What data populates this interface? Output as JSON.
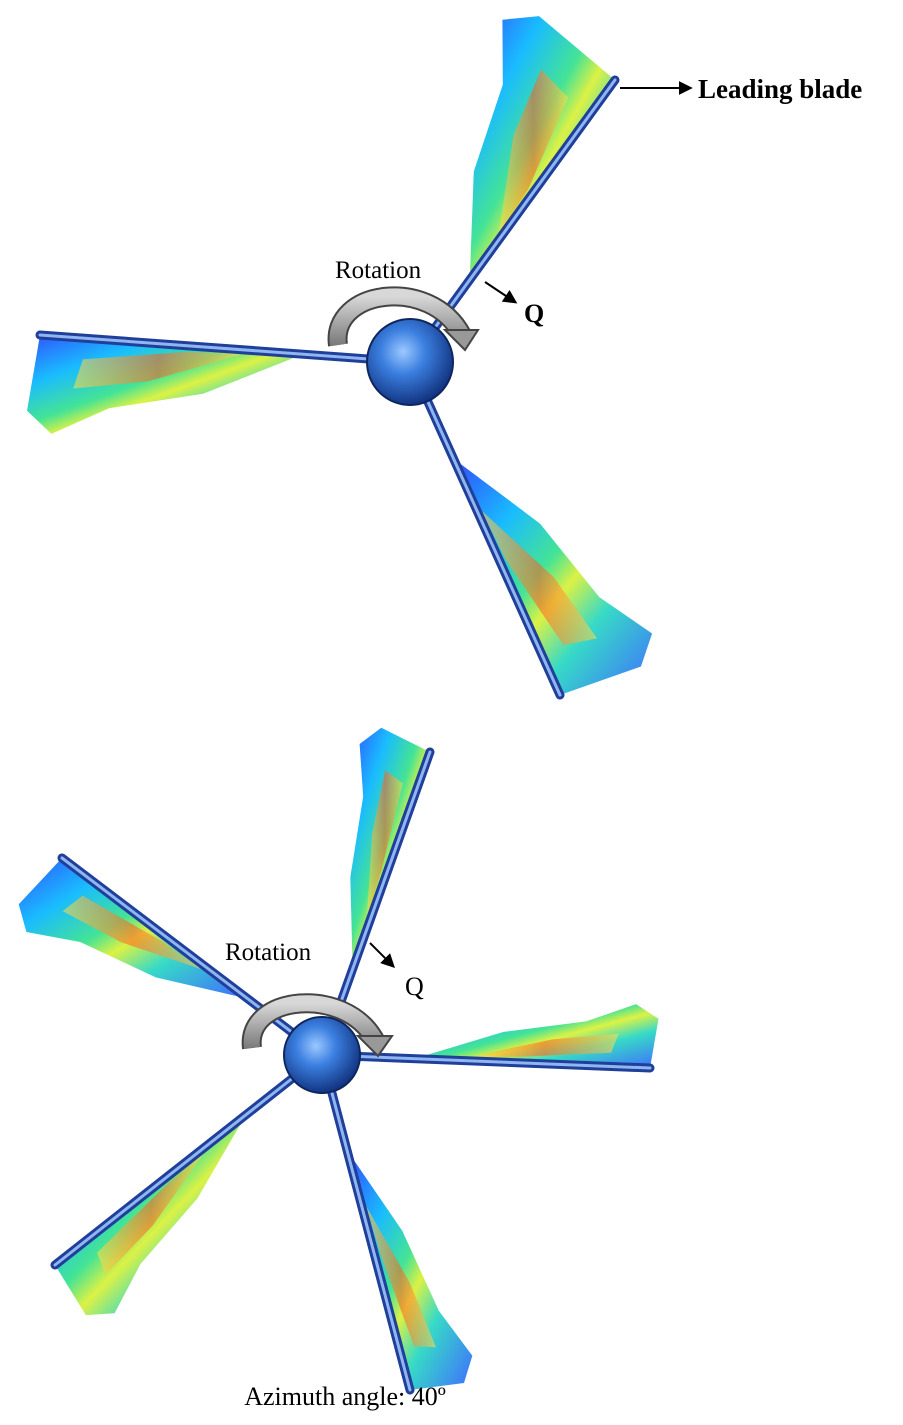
{
  "top_figure": {
    "leading_blade_label": "Leading blade",
    "rotation_label": "Rotation",
    "torque_label": "Q"
  },
  "bottom_figure": {
    "rotation_label": "Rotation",
    "torque_label": "Q"
  },
  "caption": "Azimuth angle: 40º"
}
